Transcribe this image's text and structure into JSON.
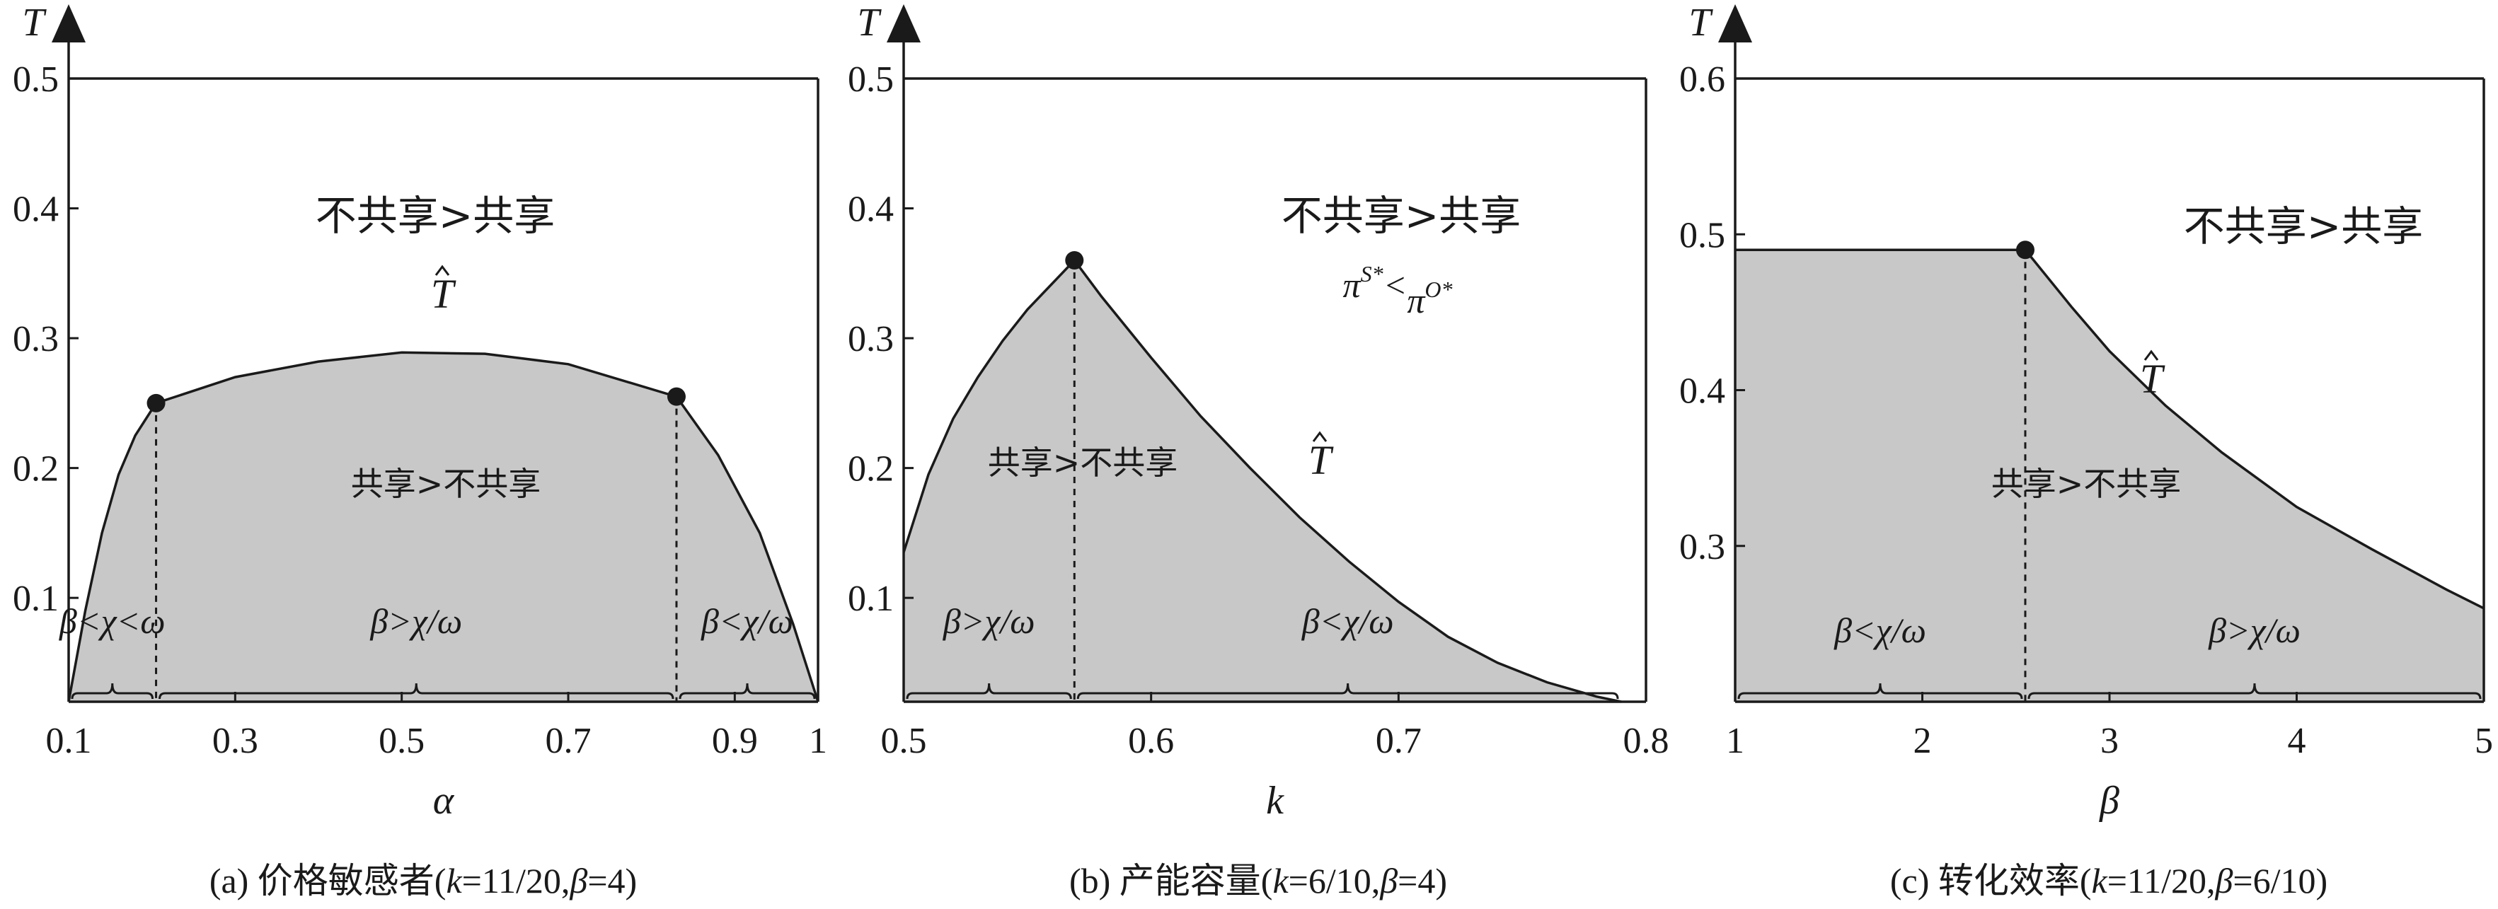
{
  "chart_data": [
    {
      "type": "area",
      "caption": {
        "prefix": "(a) 价格敏感者(",
        "k": "k",
        "k_val": "=11/20,",
        "b": "β",
        "b_val": "=4)"
      },
      "xlabel": "α",
      "ylabel": "T",
      "xlim": [
        0.1,
        1.0
      ],
      "ylim": [
        0.02,
        0.5
      ],
      "xticks": [
        0.1,
        0.3,
        0.5,
        0.7,
        0.9,
        1.0
      ],
      "xtick_labels": [
        "0.1",
        "0.3",
        "0.5",
        "0.7",
        "0.9",
        "1"
      ],
      "yticks": [
        0.1,
        0.2,
        0.3,
        0.4,
        0.5
      ],
      "ytick_labels": [
        "0.1",
        "0.2",
        "0.3",
        "0.4",
        "0.5"
      ],
      "curve_label": "T",
      "curve": {
        "x": [
          0.1,
          0.12,
          0.14,
          0.16,
          0.18,
          0.205,
          0.3,
          0.4,
          0.5,
          0.6,
          0.7,
          0.83,
          0.88,
          0.93,
          0.97,
          1.0
        ],
        "y": [
          0.02,
          0.09,
          0.15,
          0.195,
          0.225,
          0.25,
          0.27,
          0.282,
          0.289,
          0.288,
          0.28,
          0.255,
          0.21,
          0.15,
          0.08,
          0.02
        ]
      },
      "markers": [
        {
          "x": 0.205,
          "y": 0.25
        },
        {
          "x": 0.83,
          "y": 0.255
        }
      ],
      "upper_region_label": "不共享>共享",
      "lower_region_label": "共享>不共享",
      "intervals": [
        {
          "from": 0.1,
          "to": 0.205,
          "label": "β<χ<ω"
        },
        {
          "from": 0.205,
          "to": 0.83,
          "label": "β>χ/ω"
        },
        {
          "from": 0.83,
          "to": 1.0,
          "label": "β<χ/ω"
        }
      ]
    },
    {
      "type": "area",
      "caption": {
        "prefix": "(b) 产能容量(",
        "k": "k",
        "k_val": "=6/10,",
        "b": "β",
        "b_val": "=4)"
      },
      "xlabel": "k",
      "ylabel": "T",
      "xlim": [
        0.5,
        0.8
      ],
      "ylim": [
        0.02,
        0.5
      ],
      "xticks": [
        0.5,
        0.6,
        0.7,
        0.8
      ],
      "xtick_labels": [
        "0.5",
        "0.6",
        "0.7",
        "0.8"
      ],
      "yticks": [
        0.1,
        0.2,
        0.3,
        0.4,
        0.5
      ],
      "ytick_labels": [
        "0.1",
        "0.2",
        "0.3",
        "0.4",
        "0.5"
      ],
      "curve_label": "T",
      "curve": {
        "x": [
          0.5,
          0.51,
          0.52,
          0.53,
          0.54,
          0.55,
          0.56,
          0.569,
          0.58,
          0.6,
          0.62,
          0.64,
          0.66,
          0.68,
          0.7,
          0.72,
          0.74,
          0.76,
          0.78,
          0.79
        ],
        "y": [
          0.135,
          0.195,
          0.238,
          0.27,
          0.298,
          0.322,
          0.342,
          0.36,
          0.332,
          0.285,
          0.24,
          0.2,
          0.162,
          0.128,
          0.097,
          0.07,
          0.05,
          0.035,
          0.024,
          0.02
        ]
      },
      "markers": [
        {
          "x": 0.569,
          "y": 0.36
        }
      ],
      "upper_region_label": "不共享>共享",
      "upper_region_sublabel": {
        "pi": "π",
        "sup_s": "S*",
        "lt": "<",
        "sup_o": "O*"
      },
      "lower_region_label": "共享>不共享",
      "intervals": [
        {
          "from": 0.5,
          "to": 0.569,
          "label": "β>χ/ω"
        },
        {
          "from": 0.569,
          "to": 0.79,
          "label": "β<χ/ω"
        }
      ]
    },
    {
      "type": "area",
      "caption": {
        "prefix": "(c) 转化效率(",
        "k": "k",
        "k_val": "=11/20,",
        "b": "β",
        "b_val": "=6/10)"
      },
      "xlabel": "β",
      "ylabel": "T",
      "xlim": [
        1,
        5
      ],
      "ylim": [
        0.2,
        0.6
      ],
      "xticks": [
        1,
        2,
        3,
        4,
        5
      ],
      "xtick_labels": [
        "1",
        "2",
        "3",
        "4",
        "5"
      ],
      "yticks": [
        0.3,
        0.4,
        0.5,
        0.6
      ],
      "ytick_labels": [
        "0.3",
        "0.4",
        "0.5",
        "0.6"
      ],
      "curve_label": "T",
      "curve": {
        "x": [
          1,
          2.55,
          2.8,
          3.0,
          3.3,
          3.6,
          4.0,
          4.4,
          4.8,
          5.0
        ],
        "y": [
          0.49,
          0.49,
          0.453,
          0.425,
          0.39,
          0.36,
          0.325,
          0.298,
          0.272,
          0.26
        ]
      },
      "markers": [
        {
          "x": 2.55,
          "y": 0.49
        }
      ],
      "upper_region_label": "不共享>共享",
      "lower_region_label": "共享>不共享",
      "intervals": [
        {
          "from": 1,
          "to": 2.55,
          "label": "β<χ/ω"
        },
        {
          "from": 2.55,
          "to": 5,
          "label": "β>χ/ω"
        }
      ]
    }
  ],
  "colors": {
    "fill": "#c8c8c8",
    "line": "#1a1a1a",
    "background": "#ffffff"
  }
}
